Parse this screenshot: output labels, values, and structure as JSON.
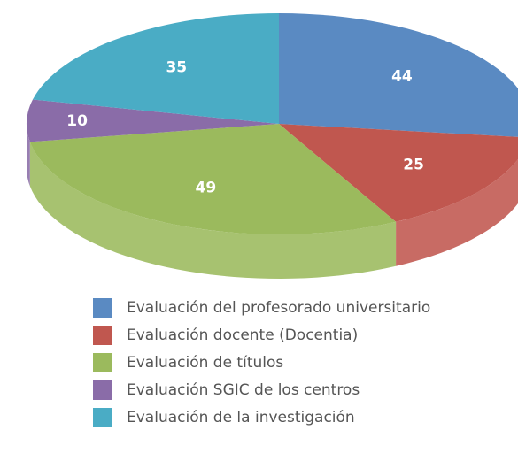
{
  "chart_data": {
    "type": "pie",
    "categories": [
      "Evaluación del profesorado universitario",
      "Evaluación docente (Docentia)",
      "Evaluación de títulos",
      "Evaluación SGIC de los centros",
      "Evaluación de la investigación"
    ],
    "values": [
      44,
      25,
      49,
      10,
      35
    ],
    "colors": [
      "#5a8ac2",
      "#c0574f",
      "#9bba5d",
      "#8a6ca8",
      "#4aacc5"
    ],
    "legend": "bottom"
  }
}
